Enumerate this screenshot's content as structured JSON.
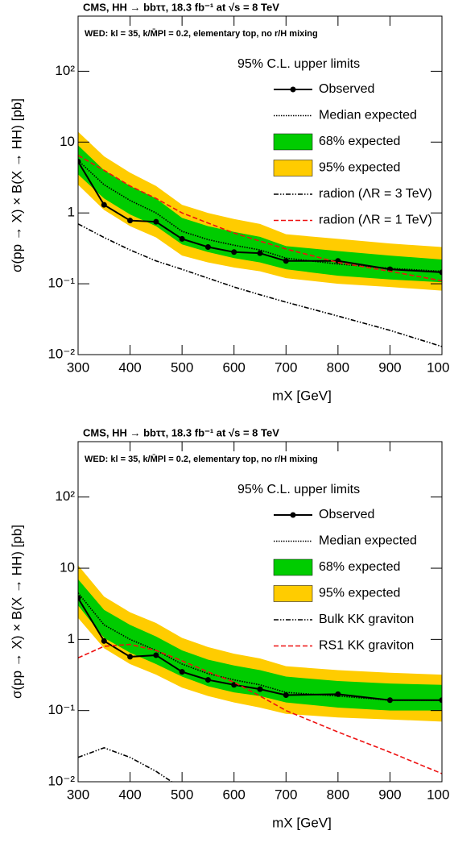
{
  "chart_data": [
    {
      "type": "line",
      "title": "CMS, HH → bbττ, 18.3 fb⁻¹ at √s = 8 TeV",
      "subtitle": "WED: kl = 35, k/M̄Pl = 0.2, elementary top, no r/H mixing",
      "xlabel": "mX [GeV]",
      "ylabel": "σ(pp → X) × B(X → HH) [pb]",
      "legend_title": "95% C.L. upper limits",
      "legend": "upper right",
      "log_y": true,
      "grid": false,
      "x": [
        300,
        350,
        400,
        450,
        500,
        550,
        600,
        650,
        700,
        800,
        900,
        1000
      ],
      "xlim": [
        300,
        1000
      ],
      "xticks": [
        300,
        400,
        500,
        600,
        700,
        800,
        900,
        1000
      ],
      "ylim": [
        0.01,
        600
      ],
      "yticks": [
        {
          "value": 0.01,
          "label": "10⁻²"
        },
        {
          "value": 0.1,
          "label": "10⁻¹"
        },
        1,
        10,
        {
          "value": 100,
          "label": "10²"
        }
      ],
      "series": [
        {
          "name": "Observed",
          "color": "#000000",
          "style": "solid-markers",
          "values": [
            5.3,
            1.3,
            0.78,
            0.75,
            0.43,
            0.33,
            0.28,
            0.27,
            0.21,
            0.21,
            0.16,
            0.145
          ]
        },
        {
          "name": "Median expected",
          "color": "#000000",
          "style": "dotted",
          "values": [
            5.5,
            2.5,
            1.5,
            1.0,
            0.55,
            0.42,
            0.35,
            0.3,
            0.23,
            0.19,
            0.165,
            0.15
          ]
        },
        {
          "name": "68% expected",
          "color": "#00cc00",
          "style": "band",
          "values": [
            3.5,
            1.6,
            0.95,
            0.65,
            0.36,
            0.28,
            0.23,
            0.2,
            0.16,
            0.13,
            0.115,
            0.105
          ],
          "upper": [
            9,
            4,
            2.4,
            1.6,
            0.85,
            0.65,
            0.54,
            0.46,
            0.34,
            0.29,
            0.25,
            0.22
          ]
        },
        {
          "name": "95% expected",
          "color": "#ffcc00",
          "style": "band",
          "values": [
            2.5,
            1.1,
            0.65,
            0.45,
            0.25,
            0.2,
            0.17,
            0.15,
            0.12,
            0.1,
            0.09,
            0.08
          ],
          "upper": [
            14,
            6.3,
            3.7,
            2.4,
            1.3,
            1.0,
            0.82,
            0.7,
            0.5,
            0.43,
            0.37,
            0.33
          ]
        },
        {
          "name": "radion (ΛR = 3 TeV)",
          "color": "#000000",
          "style": "dashdot",
          "values": [
            0.7,
            0.45,
            0.3,
            0.21,
            0.16,
            0.12,
            0.09,
            0.07,
            0.055,
            0.035,
            0.022,
            0.013
          ]
        },
        {
          "name": "radion (ΛR = 1 TeV)",
          "color": "#ee1111",
          "style": "dashed",
          "values": [
            6.5,
            4.0,
            2.4,
            1.6,
            1.0,
            0.72,
            0.52,
            0.4,
            0.31,
            0.2,
            0.15,
            0.11
          ]
        }
      ]
    },
    {
      "type": "line",
      "title": "CMS, HH → bbττ, 18.3 fb⁻¹ at √s = 8 TeV",
      "subtitle": "WED: kl = 35, k/M̄Pl = 0.2, elementary top, no r/H mixing",
      "xlabel": "mX [GeV]",
      "ylabel": "σ(pp → X) × B(X → HH) [pb]",
      "legend_title": "95% C.L. upper limits",
      "legend": "upper right",
      "log_y": true,
      "grid": false,
      "x": [
        300,
        350,
        400,
        450,
        500,
        550,
        600,
        650,
        700,
        800,
        900,
        1000
      ],
      "xlim": [
        300,
        1000
      ],
      "xticks": [
        300,
        400,
        500,
        600,
        700,
        800,
        900,
        1000
      ],
      "ylim": [
        0.01,
        600
      ],
      "yticks": [
        {
          "value": 0.01,
          "label": "10⁻²"
        },
        {
          "value": 0.1,
          "label": "10⁻¹"
        },
        1,
        10,
        {
          "value": 100,
          "label": "10²"
        }
      ],
      "series": [
        {
          "name": "Observed",
          "color": "#000000",
          "style": "solid-markers",
          "values": [
            3.8,
            0.95,
            0.57,
            0.6,
            0.35,
            0.27,
            0.23,
            0.2,
            0.165,
            0.17,
            0.14,
            0.14
          ]
        },
        {
          "name": "Median expected",
          "color": "#000000",
          "style": "dotted",
          "values": [
            4.5,
            1.6,
            1.0,
            0.7,
            0.45,
            0.33,
            0.27,
            0.23,
            0.18,
            0.16,
            0.14,
            0.14
          ]
        },
        {
          "name": "68% expected",
          "color": "#00cc00",
          "style": "band",
          "values": [
            3,
            1.05,
            0.65,
            0.45,
            0.3,
            0.22,
            0.18,
            0.16,
            0.13,
            0.11,
            0.1,
            0.1
          ],
          "upper": [
            7,
            2.6,
            1.6,
            1.1,
            0.7,
            0.52,
            0.43,
            0.37,
            0.3,
            0.26,
            0.24,
            0.23
          ]
        },
        {
          "name": "95% expected",
          "color": "#ffcc00",
          "style": "band",
          "values": [
            2,
            0.75,
            0.45,
            0.32,
            0.21,
            0.16,
            0.13,
            0.11,
            0.09,
            0.08,
            0.075,
            0.07
          ],
          "upper": [
            11,
            4,
            2.4,
            1.7,
            1.05,
            0.78,
            0.63,
            0.54,
            0.42,
            0.37,
            0.34,
            0.32
          ]
        },
        {
          "name": "Bulk KK graviton",
          "color": "#000000",
          "style": "dashdot",
          "values": [
            0.022,
            0.03,
            0.022,
            0.014,
            0.008,
            null,
            null,
            null,
            null,
            null,
            null,
            null
          ]
        },
        {
          "name": "RS1 KK graviton",
          "color": "#ee1111",
          "style": "dashed",
          "values": [
            0.55,
            0.8,
            0.85,
            0.7,
            0.5,
            0.35,
            0.25,
            0.16,
            0.1,
            0.05,
            0.026,
            0.013
          ]
        }
      ]
    }
  ]
}
